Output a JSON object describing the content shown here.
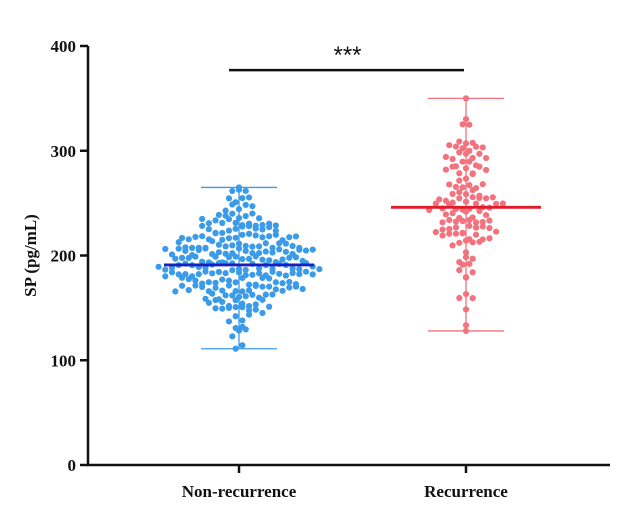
{
  "chart_data": {
    "type": "scatter",
    "subtype": "dot-plot-with-mean-and-range",
    "title": "",
    "xlabel": "",
    "ylabel": "SP (pg/mL)",
    "ylim": [
      0,
      400
    ],
    "yticks": [
      0,
      100,
      200,
      300,
      400
    ],
    "categories": [
      "Non-recurrence",
      "Recurrence"
    ],
    "series": [
      {
        "name": "Non-recurrence",
        "color": "#3b9be8",
        "mean_color": "#1a1fc2",
        "n_points": 250,
        "mean": 191,
        "min": 111,
        "max": 265,
        "sd": 30,
        "seed": 17
      },
      {
        "name": "Recurrence",
        "color": "#f2727e",
        "mean_color": "#e01b2a",
        "n_points": 120,
        "mean": 246,
        "min": 128,
        "max": 350,
        "sd": 42,
        "seed": 42
      }
    ],
    "significance": {
      "label": "***",
      "between": [
        "Non-recurrence",
        "Recurrence"
      ],
      "value": 377
    }
  }
}
